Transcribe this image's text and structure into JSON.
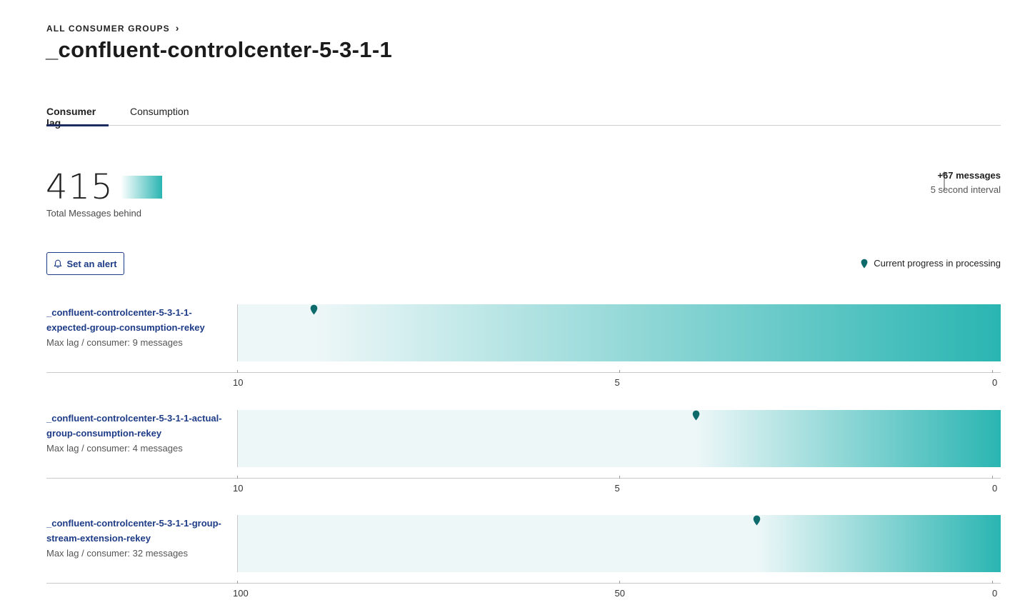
{
  "breadcrumb": {
    "label": "ALL CONSUMER GROUPS",
    "chevron": "›"
  },
  "page": {
    "title": "_confluent-controlcenter-5-3-1-1"
  },
  "tabs": [
    {
      "label": "Consumer lag",
      "active": true
    },
    {
      "label": "Consumption",
      "active": false
    }
  ],
  "summary": {
    "total": "415",
    "total_label": "Total Messages behind",
    "delta_value": "+67 messages",
    "delta_interval": "5 second interval"
  },
  "actions": {
    "alert_label": "Set an alert"
  },
  "legend": {
    "label": "Current progress in processing",
    "icon": "location-pin-icon"
  },
  "colors": {
    "accent": "#2ab5b2",
    "marker": "#0e6b6b",
    "link": "#1d3b86",
    "tab_underline": "#1d2b5e"
  },
  "groups": [
    {
      "name_line1": "_confluent-controlcenter-5-3-1-1-",
      "name_line2": "expected-group-consumption-rekey",
      "sub": "Max lag / consumer: 9 messages",
      "max": 10,
      "lag": 9,
      "ticks": [
        "10",
        "5",
        "0"
      ]
    },
    {
      "name_line1": "_confluent-controlcenter-5-3-1-1-actual-",
      "name_line2": "group-consumption-rekey",
      "sub": "Max lag / consumer: 4 messages",
      "max": 10,
      "lag": 4,
      "ticks": [
        "10",
        "5",
        "0"
      ]
    },
    {
      "name_line1": "_confluent-controlcenter-5-3-1-1-group-",
      "name_line2": "stream-extension-rekey",
      "sub": "Max lag / consumer: 32 messages",
      "max": 100,
      "lag": 32,
      "ticks": [
        "100",
        "50",
        "0"
      ]
    }
  ]
}
